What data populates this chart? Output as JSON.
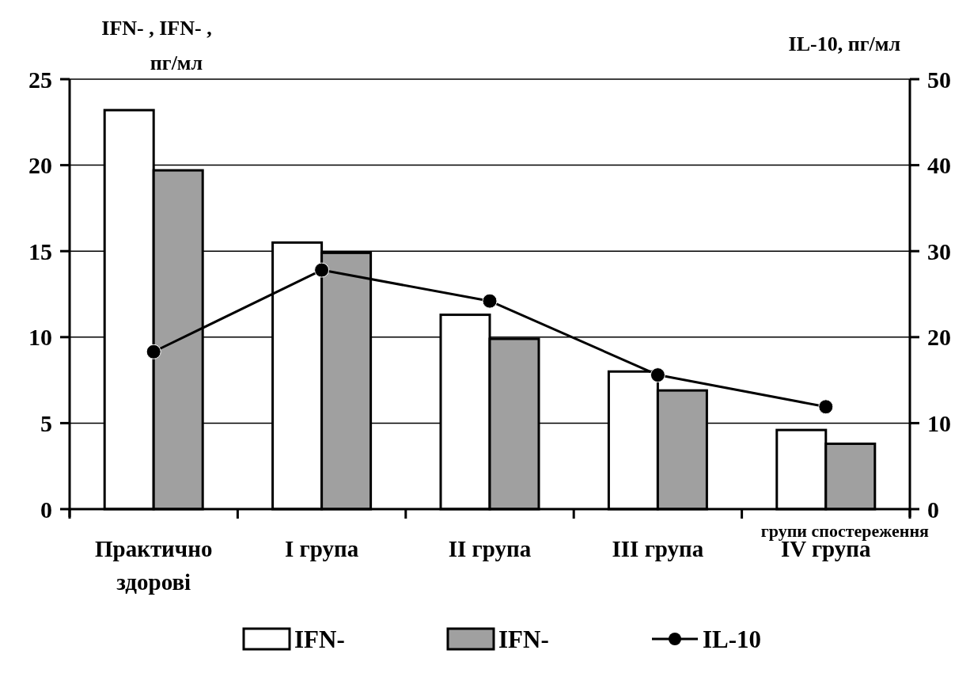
{
  "chart_data": {
    "type": "bar",
    "ylabel": "IFN-  , IFN-  ,\nпг/мл",
    "y2label": "IL-10, пг/мл",
    "xlabel": "групи спостереження",
    "categories": [
      "Практично\nздорові",
      "I група",
      "II група",
      "III група",
      "IV група"
    ],
    "series": [
      {
        "name": "IFN-",
        "color": "#ffffff",
        "values": [
          23.2,
          15.5,
          11.3,
          8.0,
          4.6
        ]
      },
      {
        "name": "IFN-",
        "color": "#a0a0a0",
        "values": [
          19.7,
          14.9,
          9.9,
          6.9,
          3.8
        ]
      },
      {
        "name": "IL-10",
        "type": "line",
        "axis": "y2",
        "color": "#000000",
        "marker": "circle",
        "values": [
          18.3,
          27.8,
          24.2,
          15.6,
          11.9
        ]
      }
    ],
    "ylim": [
      0,
      25
    ],
    "yticks": [
      0,
      5,
      10,
      15,
      20,
      25
    ],
    "y2lim": [
      0,
      50
    ],
    "y2ticks": [
      0,
      10,
      20,
      30,
      40,
      50
    ],
    "grid": "y",
    "legend": "bottom"
  }
}
